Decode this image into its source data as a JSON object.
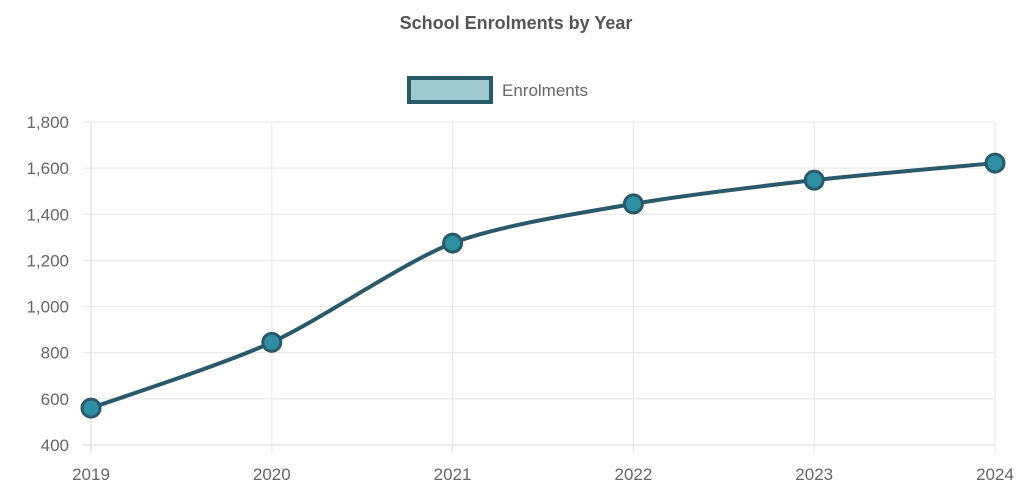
{
  "chart_data": {
    "type": "line",
    "title": "School Enrolments by Year",
    "categories": [
      "2019",
      "2020",
      "2021",
      "2022",
      "2023",
      "2024"
    ],
    "series": [
      {
        "name": "Enrolments",
        "values": [
          560,
          845,
          1275,
          1445,
          1548,
          1622
        ],
        "line_color": "#2a5a6a",
        "point_fill": "#2e8fa3",
        "legend_fill": "#9ec9cf"
      }
    ],
    "y_ticks": [
      "400",
      "600",
      "800",
      "1,000",
      "1,200",
      "1,400",
      "1,600",
      "1,800"
    ],
    "ylim": [
      400,
      1800
    ],
    "xlabel": "",
    "ylabel": "",
    "grid": true,
    "legend_position": "top-center"
  }
}
